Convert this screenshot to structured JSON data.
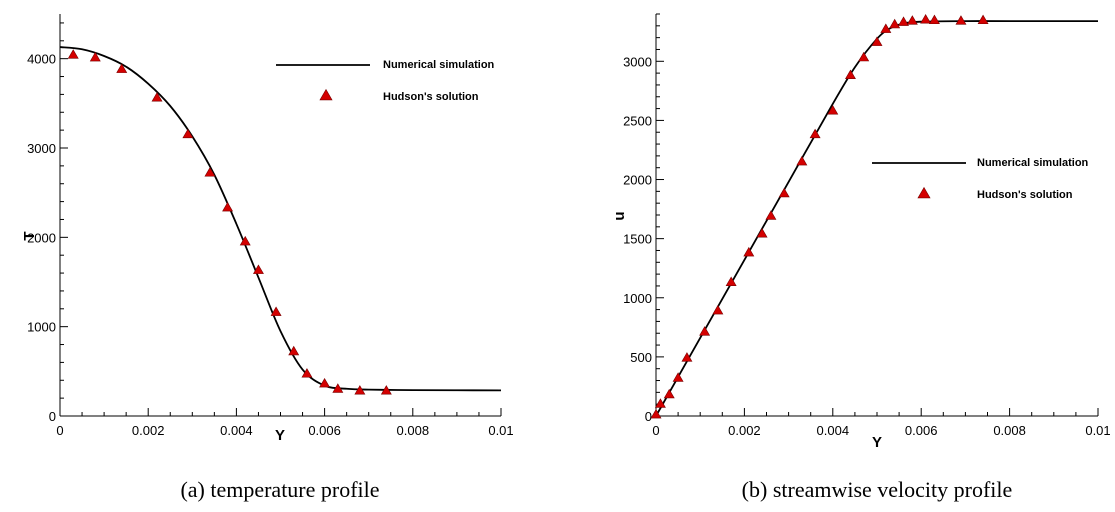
{
  "colors": {
    "line": "#000000",
    "marker_fill": "#d40000",
    "marker_edge": "#7a0000"
  },
  "chart_data": [
    {
      "type": "line",
      "caption": "(a) temperature profile",
      "xlabel": "Y",
      "ylabel": "T",
      "xlim": [
        0,
        0.01
      ],
      "ylim": [
        0,
        4500
      ],
      "xticks": [
        0,
        0.002,
        0.004,
        0.006,
        0.008,
        0.01
      ],
      "xtick_labels": [
        "0",
        "0.002",
        "0.004",
        "0.006",
        "0.008",
        "0.01"
      ],
      "yticks": [
        0,
        1000,
        2000,
        3000,
        4000
      ],
      "ytick_labels": [
        "0",
        "1000",
        "2000",
        "3000",
        "4000"
      ],
      "grid": false,
      "legend_position": "top-right",
      "series": [
        {
          "name": "Numerical simulation",
          "style": "line",
          "x": [
            0,
            0.0005,
            0.001,
            0.0015,
            0.002,
            0.0025,
            0.003,
            0.0035,
            0.004,
            0.0045,
            0.005,
            0.0055,
            0.006,
            0.0065,
            0.007,
            0.008,
            0.009,
            0.01
          ],
          "y": [
            4130,
            4105,
            4030,
            3910,
            3720,
            3470,
            3130,
            2700,
            2150,
            1550,
            950,
            520,
            340,
            305,
            295,
            290,
            288,
            287
          ]
        },
        {
          "name": "Hudson's solution",
          "style": "marker",
          "x": [
            0.0003,
            0.0008,
            0.0014,
            0.0022,
            0.0029,
            0.0034,
            0.0038,
            0.0042,
            0.0045,
            0.0049,
            0.0053,
            0.0056,
            0.006,
            0.0063,
            0.0068,
            0.0074
          ],
          "y": [
            4040,
            4010,
            3880,
            3560,
            3150,
            2720,
            2330,
            1950,
            1630,
            1160,
            720,
            470,
            360,
            300,
            280,
            280
          ]
        }
      ]
    },
    {
      "type": "line",
      "caption": "(b) streamwise velocity profile",
      "xlabel": "Y",
      "ylabel": "u",
      "xlim": [
        0,
        0.01
      ],
      "ylim": [
        0,
        3400
      ],
      "xticks": [
        0,
        0.002,
        0.004,
        0.006,
        0.008,
        0.01
      ],
      "xtick_labels": [
        "0",
        "0.002",
        "0.004",
        "0.006",
        "0.008",
        "0.01"
      ],
      "yticks": [
        0,
        500,
        1000,
        1500,
        2000,
        2500,
        3000
      ],
      "ytick_labels": [
        "0",
        "500",
        "1000",
        "1500",
        "2000",
        "2500",
        "3000"
      ],
      "grid": false,
      "legend_position": "right",
      "series": [
        {
          "name": "Numerical simulation",
          "style": "line",
          "x": [
            0,
            0.001,
            0.002,
            0.003,
            0.004,
            0.0045,
            0.005,
            0.0053,
            0.0056,
            0.006,
            0.007,
            0.008,
            0.01
          ],
          "y": [
            0,
            660,
            1320,
            1980,
            2640,
            2950,
            3190,
            3280,
            3320,
            3335,
            3340,
            3340,
            3340
          ]
        },
        {
          "name": "Hudson's solution",
          "style": "marker",
          "x": [
            0,
            0.0001,
            0.0003,
            0.0005,
            0.0007,
            0.0011,
            0.0014,
            0.0017,
            0.0021,
            0.0024,
            0.0026,
            0.0029,
            0.0033,
            0.0036,
            0.004,
            0.0044,
            0.0047,
            0.005,
            0.0052,
            0.0054,
            0.0056,
            0.0058,
            0.0061,
            0.0063,
            0.0069,
            0.0074
          ],
          "y": [
            10,
            100,
            180,
            320,
            490,
            710,
            890,
            1130,
            1380,
            1540,
            1690,
            1880,
            2150,
            2380,
            2580,
            2880,
            3030,
            3160,
            3270,
            3310,
            3330,
            3340,
            3350,
            3345,
            3340,
            3345
          ]
        }
      ]
    }
  ]
}
